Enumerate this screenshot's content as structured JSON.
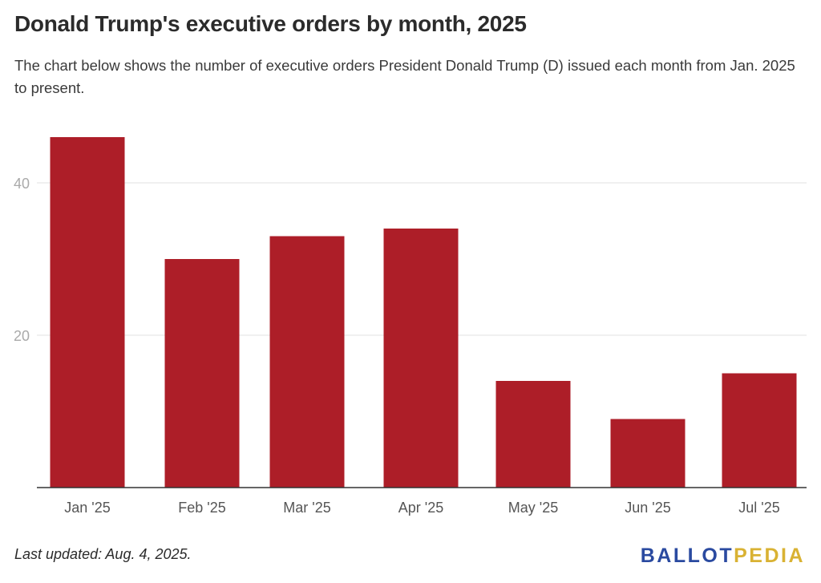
{
  "header": {
    "title": "Donald Trump's executive orders by month, 2025",
    "subtitle": "The chart below shows the number of executive orders President Donald Trump (D) issued each month from Jan. 2025 to present."
  },
  "footer": {
    "note": "Last updated: Aug. 4, 2025.",
    "logo": {
      "part1": "BALLOT",
      "part2": "PEDIA"
    }
  },
  "colors": {
    "bar": "#ad1e28",
    "gridline": "#e2e2e2",
    "axis": "#333333",
    "tick_label": "#aaaaaa",
    "category_label": "#555555"
  },
  "chart_data": {
    "type": "bar",
    "categories": [
      "Jan '25",
      "Feb '25",
      "Mar '25",
      "Apr '25",
      "May '25",
      "Jun '25",
      "Jul '25"
    ],
    "values": [
      46,
      30,
      33,
      34,
      14,
      9,
      15
    ],
    "yticks": [
      20,
      40
    ],
    "ylim": [
      0,
      48
    ],
    "grid": true
  }
}
